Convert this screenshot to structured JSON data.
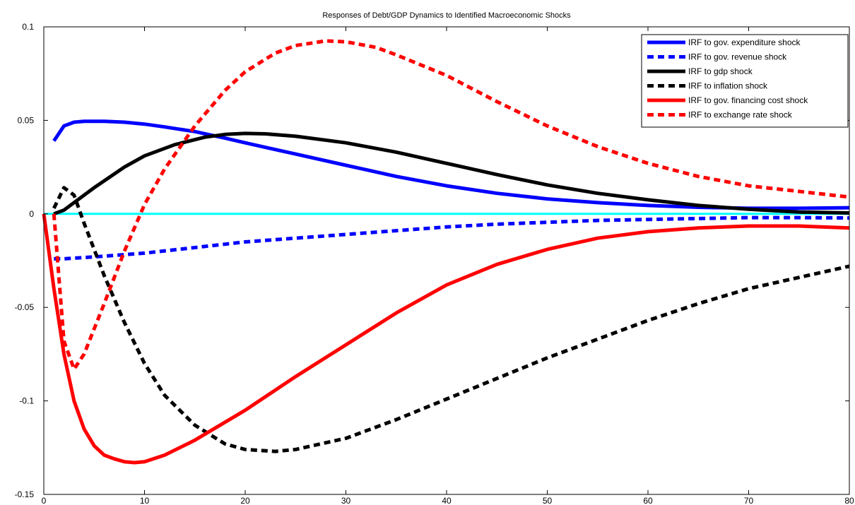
{
  "chart_data": {
    "type": "line",
    "title": "Responses of Debt/GDP Dynamics to Identified Macroeconomic Shocks",
    "xlabel": "",
    "ylabel": "",
    "xlim": [
      0,
      80
    ],
    "ylim": [
      -0.15,
      0.1
    ],
    "x_ticks": [
      0,
      10,
      20,
      30,
      40,
      50,
      60,
      70,
      80
    ],
    "x_tick_labels": [
      "0",
      "10",
      "20",
      "30",
      "40",
      "50",
      "60",
      "70",
      "80"
    ],
    "y_ticks": [
      -0.15,
      -0.1,
      -0.05,
      0,
      0.05,
      0.1
    ],
    "y_tick_labels": [
      "-0.15",
      "-0.1",
      "-0.05",
      "0",
      "0.05",
      "0.1"
    ],
    "grid": false,
    "legend_position": "top-right",
    "reference_line": {
      "y": 0,
      "color": "#00ffff"
    },
    "series": [
      {
        "name": "IRF to gov. expenditure shock",
        "color": "#0000ff",
        "style": "solid",
        "x": [
          1,
          2,
          3,
          4,
          6,
          8,
          10,
          12,
          15,
          18,
          20,
          25,
          30,
          35,
          40,
          45,
          50,
          55,
          60,
          65,
          70,
          75,
          80
        ],
        "y": [
          0.039,
          0.047,
          0.049,
          0.0495,
          0.0495,
          0.049,
          0.048,
          0.0465,
          0.044,
          0.0405,
          0.038,
          0.032,
          0.026,
          0.02,
          0.015,
          0.011,
          0.008,
          0.006,
          0.0045,
          0.0035,
          0.003,
          0.003,
          0.0033
        ]
      },
      {
        "name": "IRF to gov. revenue shock",
        "color": "#0000ff",
        "style": "dashed",
        "x": [
          1,
          2,
          5,
          10,
          15,
          20,
          25,
          30,
          35,
          40,
          45,
          50,
          55,
          60,
          65,
          70,
          75,
          80
        ],
        "y": [
          -0.024,
          -0.024,
          -0.023,
          -0.021,
          -0.018,
          -0.015,
          -0.013,
          -0.011,
          -0.009,
          -0.007,
          -0.0055,
          -0.0045,
          -0.0035,
          -0.003,
          -0.0025,
          -0.002,
          -0.002,
          -0.0022
        ]
      },
      {
        "name": "IRF to gdp shock",
        "color": "#000000",
        "style": "solid",
        "x": [
          1,
          2,
          3,
          5,
          8,
          10,
          13,
          16,
          18,
          20,
          22,
          25,
          30,
          35,
          40,
          45,
          50,
          55,
          60,
          65,
          70,
          75,
          80
        ],
        "y": [
          0,
          0.002,
          0.006,
          0.014,
          0.025,
          0.031,
          0.037,
          0.041,
          0.0425,
          0.043,
          0.0428,
          0.0415,
          0.038,
          0.033,
          0.027,
          0.021,
          0.0155,
          0.011,
          0.0075,
          0.0045,
          0.0025,
          0.001,
          0.0005
        ]
      },
      {
        "name": "IRF to inflation shock",
        "color": "#000000",
        "style": "dashed",
        "x": [
          1,
          2,
          3,
          4,
          6,
          8,
          10,
          12,
          15,
          18,
          20,
          23,
          25,
          30,
          35,
          40,
          45,
          50,
          55,
          60,
          65,
          70,
          75,
          80
        ],
        "y": [
          0.003,
          0.014,
          0.01,
          -0.005,
          -0.033,
          -0.058,
          -0.08,
          -0.097,
          -0.113,
          -0.123,
          -0.126,
          -0.127,
          -0.126,
          -0.12,
          -0.11,
          -0.099,
          -0.088,
          -0.077,
          -0.067,
          -0.057,
          -0.048,
          -0.04,
          -0.034,
          -0.028
        ]
      },
      {
        "name": "IRF to gov. financing cost shock",
        "color": "#ff0000",
        "style": "solid",
        "x": [
          0,
          1,
          2,
          3,
          4,
          5,
          6,
          7,
          8,
          9,
          10,
          12,
          15,
          20,
          25,
          30,
          35,
          40,
          45,
          50,
          55,
          60,
          65,
          70,
          75,
          80
        ],
        "y": [
          0,
          -0.04,
          -0.075,
          -0.1,
          -0.115,
          -0.124,
          -0.129,
          -0.131,
          -0.1325,
          -0.133,
          -0.1325,
          -0.129,
          -0.121,
          -0.105,
          -0.087,
          -0.07,
          -0.053,
          -0.038,
          -0.027,
          -0.019,
          -0.013,
          -0.0095,
          -0.0075,
          -0.0065,
          -0.0065,
          -0.0075
        ]
      },
      {
        "name": "IRF to exchange rate shock",
        "color": "#ff0000",
        "style": "dashed",
        "x": [
          1,
          2,
          3,
          4,
          6,
          8,
          10,
          12,
          15,
          18,
          20,
          23,
          25,
          28,
          30,
          33,
          35,
          40,
          45,
          50,
          55,
          60,
          65,
          70,
          75,
          80
        ],
        "y": [
          0,
          -0.068,
          -0.083,
          -0.075,
          -0.048,
          -0.02,
          0.005,
          0.024,
          0.047,
          0.066,
          0.076,
          0.086,
          0.09,
          0.0925,
          0.092,
          0.089,
          0.085,
          0.074,
          0.06,
          0.047,
          0.036,
          0.027,
          0.02,
          0.015,
          0.012,
          0.009
        ]
      }
    ]
  }
}
